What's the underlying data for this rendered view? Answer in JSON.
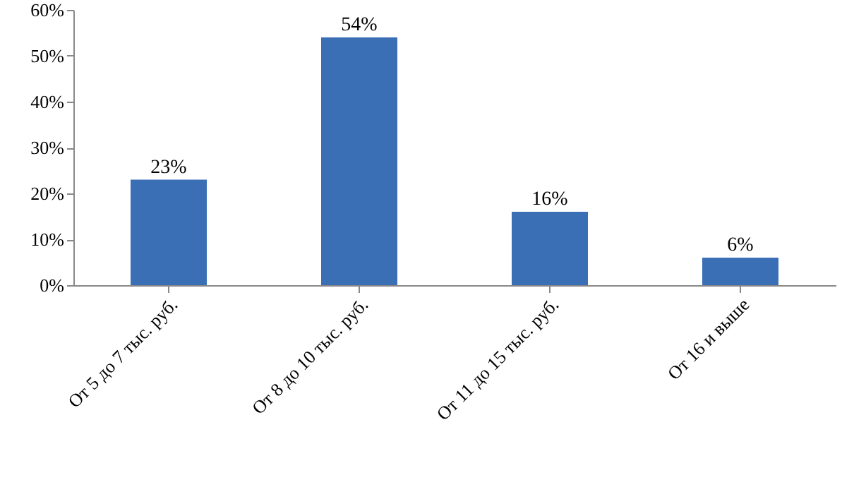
{
  "chart_data": {
    "type": "bar",
    "categories": [
      "От 5 до 7 тыс. руб.",
      "От 8 до 10 тыс. руб.",
      "От 11 до 15 тыс. руб.",
      "От 16 и выше"
    ],
    "values": [
      23,
      54,
      16,
      6
    ],
    "value_labels": [
      "23%",
      "54%",
      "16%",
      "6%"
    ],
    "color": "#3a6fb5",
    "ylim": [
      0,
      60
    ],
    "yticks": [
      {
        "value": 0,
        "label": "0%"
      },
      {
        "value": 10,
        "label": "10%"
      },
      {
        "value": 20,
        "label": "20%"
      },
      {
        "value": 30,
        "label": "30%"
      },
      {
        "value": 40,
        "label": "40%"
      },
      {
        "value": 50,
        "label": "50%"
      },
      {
        "value": 60,
        "label": "60%"
      }
    ],
    "grid": false
  }
}
